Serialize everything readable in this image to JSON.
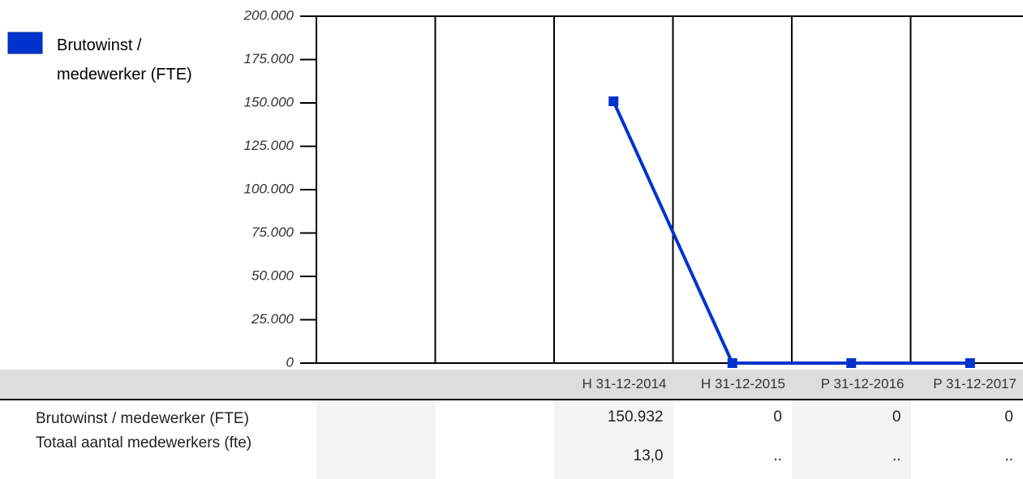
{
  "chart_data": {
    "type": "line",
    "categories": [
      null,
      null,
      "H 31-12-2014",
      "H 31-12-2015",
      "P 31-12-2016",
      "P 31-12-2017"
    ],
    "series": [
      {
        "name": "Brutowinst / medewerker (FTE)",
        "color": "#0033cc",
        "values": [
          null,
          null,
          150932,
          0,
          0,
          0
        ],
        "value_labels": [
          null,
          null,
          "150.932",
          "0",
          "0",
          "0"
        ]
      }
    ],
    "ylim": [
      0,
      200000
    ],
    "yticks": [
      0,
      {
        "value": 25000,
        "label": "25.000"
      },
      {
        "value": 50000,
        "label": "50.000"
      },
      {
        "value": 75000,
        "label": "75.000"
      },
      {
        "value": 100000,
        "label": "100.000"
      },
      {
        "value": 125000,
        "label": "125.000"
      },
      {
        "value": 150000,
        "label": "150.000"
      },
      {
        "value": 175000,
        "label": "175.000"
      },
      {
        "value": 200000,
        "label": "200.000"
      }
    ],
    "grid": false,
    "legend": "top-left"
  },
  "table": {
    "rows": [
      {
        "label": "Totaal aantal medewerkers (fte)",
        "values": [
          null,
          null,
          "13,0",
          "..",
          "..",
          ".."
        ]
      }
    ]
  }
}
